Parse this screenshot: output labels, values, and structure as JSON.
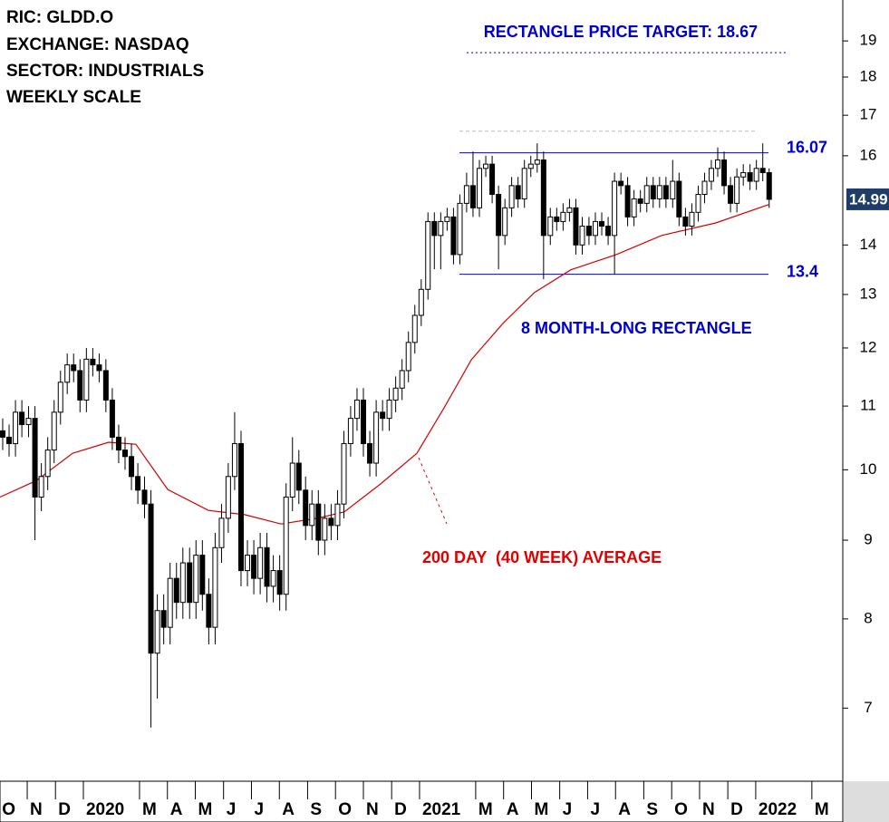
{
  "chart_data": {
    "type": "candlestick",
    "header": [
      "RIC: GLDD.O",
      "EXCHANGE: NASDAQ",
      "SECTOR: INDUSTRIALS",
      "WEEKLY SCALE"
    ],
    "log_scale": true,
    "ylim": [
      6.3,
      20.2
    ],
    "yticks": [
      7,
      8,
      9,
      10,
      11,
      12,
      13,
      14,
      16,
      17,
      18,
      19
    ],
    "xlim": [
      2019.752,
      2022.259
    ],
    "xticks": [
      {
        "value": 2019.75,
        "label": "O"
      },
      {
        "value": 2019.833,
        "label": "N"
      },
      {
        "value": 2019.917,
        "label": "D"
      },
      2020,
      {
        "value": 2020.167,
        "label": "M"
      },
      {
        "value": 2020.25,
        "label": "A"
      },
      {
        "value": 2020.333,
        "label": "M"
      },
      {
        "value": 2020.417,
        "label": "J"
      },
      {
        "value": 2020.5,
        "label": "J"
      },
      {
        "value": 2020.583,
        "label": "A"
      },
      {
        "value": 2020.667,
        "label": "S"
      },
      {
        "value": 2020.75,
        "label": "O"
      },
      {
        "value": 2020.833,
        "label": "N"
      },
      {
        "value": 2020.917,
        "label": "D"
      },
      2021,
      {
        "value": 2021.167,
        "label": "M"
      },
      {
        "value": 2021.25,
        "label": "A"
      },
      {
        "value": 2021.333,
        "label": "M"
      },
      {
        "value": 2021.417,
        "label": "J"
      },
      {
        "value": 2021.5,
        "label": "J"
      },
      {
        "value": 2021.583,
        "label": "A"
      },
      {
        "value": 2021.667,
        "label": "S"
      },
      {
        "value": 2021.75,
        "label": "O"
      },
      {
        "value": 2021.833,
        "label": "N"
      },
      {
        "value": 2021.917,
        "label": "D"
      },
      2022,
      {
        "value": 2022.167,
        "label": "M"
      }
    ],
    "color_up": "#ffffff",
    "color_down": "#000000",
    "x": [
      2019.76,
      2019.779,
      2019.798,
      2019.817,
      2019.837,
      2019.856,
      2019.875,
      2019.894,
      2019.913,
      2019.932,
      2019.952,
      2019.971,
      2019.99,
      2020.009,
      2020.028,
      2020.047,
      2020.067,
      2020.086,
      2020.105,
      2020.124,
      2020.143,
      2020.162,
      2020.182,
      2020.201,
      2020.22,
      2020.239,
      2020.258,
      2020.277,
      2020.296,
      2020.316,
      2020.335,
      2020.354,
      2020.373,
      2020.392,
      2020.411,
      2020.431,
      2020.45,
      2020.469,
      2020.488,
      2020.507,
      2020.526,
      2020.546,
      2020.565,
      2020.584,
      2020.603,
      2020.622,
      2020.641,
      2020.661,
      2020.68,
      2020.699,
      2020.718,
      2020.737,
      2020.756,
      2020.775,
      2020.795,
      2020.814,
      2020.833,
      2020.852,
      2020.871,
      2020.89,
      2020.91,
      2020.929,
      2020.948,
      2020.967,
      2020.986,
      2021.005,
      2021.025,
      2021.044,
      2021.063,
      2021.082,
      2021.101,
      2021.12,
      2021.14,
      2021.159,
      2021.178,
      2021.197,
      2021.216,
      2021.235,
      2021.254,
      2021.274,
      2021.293,
      2021.312,
      2021.331,
      2021.35,
      2021.369,
      2021.389,
      2021.408,
      2021.427,
      2021.446,
      2021.465,
      2021.484,
      2021.504,
      2021.523,
      2021.542,
      2021.561,
      2021.58,
      2021.599,
      2021.619,
      2021.638,
      2021.657,
      2021.676,
      2021.695,
      2021.714,
      2021.733,
      2021.753,
      2021.772,
      2021.791,
      2021.81,
      2021.829,
      2021.848,
      2021.868,
      2021.887,
      2021.906,
      2021.925,
      2021.944,
      2021.963,
      2021.983,
      2022.002,
      2022.021,
      2022.04
    ],
    "open": [
      10.6,
      10.5,
      10.4,
      10.9,
      10.7,
      10.8,
      9.6,
      9.9,
      10.3,
      10.9,
      11.4,
      11.7,
      11.6,
      11.1,
      11.8,
      11.7,
      11.6,
      11.1,
      10.5,
      10.3,
      10.2,
      9.9,
      9.7,
      9.5,
      7.6,
      8.1,
      7.9,
      8.5,
      8.2,
      8.7,
      8.2,
      8.8,
      8.3,
      7.9,
      8.9,
      9.3,
      9.9,
      10.4,
      8.6,
      8.8,
      8.5,
      8.9,
      8.4,
      8.6,
      8.3,
      9.6,
      10.1,
      9.7,
      9.2,
      9.5,
      9.0,
      9.3,
      9.2,
      9.5,
      10.4,
      10.8,
      11.1,
      10.4,
      10.1,
      10.9,
      10.8,
      11.1,
      11.3,
      11.6,
      12.1,
      12.6,
      13.1,
      14.5,
      14.2,
      14.5,
      14.6,
      13.8,
      14.9,
      15.3,
      14.8,
      15.7,
      15.8,
      15.1,
      14.2,
      14.8,
      15.3,
      15.0,
      15.7,
      15.8,
      15.9,
      14.2,
      14.6,
      14.5,
      14.7,
      14.8,
      14.0,
      14.4,
      14.2,
      14.5,
      14.4,
      14.2,
      15.4,
      15.3,
      14.6,
      15.0,
      14.9,
      15.3,
      15.0,
      15.3,
      15.0,
      15.4,
      14.6,
      14.4,
      14.7,
      15.1,
      15.4,
      15.7,
      15.9,
      15.3,
      14.9,
      15.5,
      15.6,
      15.4,
      15.7,
      15.6
    ],
    "high": [
      10.8,
      10.7,
      11.1,
      11.1,
      11.0,
      11.0,
      10.1,
      10.5,
      11.1,
      11.6,
      11.9,
      11.9,
      11.8,
      12.0,
      12.0,
      11.9,
      11.8,
      11.3,
      10.7,
      10.5,
      10.4,
      10.1,
      9.9,
      9.7,
      8.3,
      8.3,
      8.7,
      8.7,
      8.9,
      8.9,
      9.0,
      9.0,
      8.5,
      9.1,
      9.5,
      10.1,
      10.9,
      10.6,
      9.0,
      9.0,
      9.1,
      9.1,
      8.8,
      8.8,
      9.8,
      10.5,
      10.3,
      9.9,
      9.7,
      9.7,
      9.5,
      9.5,
      9.7,
      10.6,
      11.0,
      11.3,
      11.3,
      10.6,
      11.1,
      11.1,
      11.3,
      11.5,
      11.8,
      12.3,
      12.8,
      13.3,
      14.7,
      14.7,
      14.7,
      14.8,
      14.8,
      15.1,
      15.6,
      16.1,
      15.9,
      16.0,
      16.0,
      15.3,
      15.0,
      15.5,
      15.5,
      15.9,
      16.0,
      16.3,
      16.1,
      14.8,
      14.8,
      14.9,
      15.0,
      15.0,
      14.6,
      14.6,
      14.7,
      14.7,
      14.6,
      15.6,
      15.6,
      15.5,
      15.2,
      15.2,
      15.5,
      15.5,
      15.5,
      15.5,
      15.9,
      15.6,
      14.8,
      14.9,
      15.3,
      15.6,
      15.9,
      16.2,
      16.1,
      15.5,
      15.7,
      15.8,
      15.8,
      15.9,
      16.3,
      15.7
    ],
    "low": [
      10.3,
      10.2,
      10.2,
      10.5,
      10.5,
      9.0,
      9.4,
      9.7,
      10.1,
      10.7,
      11.2,
      11.4,
      10.9,
      10.9,
      11.5,
      11.4,
      10.9,
      10.3,
      10.1,
      10.0,
      9.7,
      9.5,
      9.3,
      6.8,
      7.1,
      7.7,
      7.7,
      8.0,
      8.0,
      8.0,
      8.0,
      8.1,
      7.7,
      7.7,
      8.7,
      9.1,
      9.7,
      8.4,
      8.4,
      8.3,
      8.3,
      8.2,
      8.2,
      8.1,
      8.1,
      9.4,
      9.5,
      9.0,
      9.0,
      8.8,
      8.8,
      9.0,
      9.0,
      9.3,
      10.2,
      10.6,
      10.2,
      9.9,
      9.9,
      10.6,
      10.6,
      10.9,
      11.1,
      11.4,
      11.9,
      12.4,
      12.9,
      13.5,
      13.5,
      14.3,
      13.6,
      13.6,
      14.7,
      14.6,
      14.6,
      15.5,
      14.9,
      13.5,
      14.0,
      14.6,
      14.8,
      14.8,
      15.5,
      15.6,
      13.3,
      14.0,
      14.3,
      14.3,
      14.5,
      13.8,
      13.8,
      14.0,
      14.0,
      14.2,
      14.0,
      13.4,
      15.1,
      14.4,
      14.4,
      14.7,
      14.7,
      14.8,
      14.8,
      14.8,
      14.8,
      14.4,
      14.2,
      14.2,
      14.5,
      14.9,
      15.2,
      15.5,
      15.1,
      14.7,
      14.7,
      15.3,
      15.2,
      15.2,
      15.4,
      14.8
    ],
    "close": [
      10.5,
      10.4,
      10.9,
      10.7,
      10.8,
      9.6,
      9.9,
      10.3,
      10.9,
      11.4,
      11.7,
      11.6,
      11.1,
      11.8,
      11.7,
      11.6,
      11.1,
      10.5,
      10.3,
      10.2,
      9.9,
      9.7,
      9.5,
      7.6,
      8.1,
      7.9,
      8.5,
      8.2,
      8.7,
      8.2,
      8.8,
      8.3,
      7.9,
      8.9,
      9.3,
      9.9,
      10.4,
      8.6,
      8.8,
      8.5,
      8.9,
      8.4,
      8.6,
      8.3,
      9.6,
      10.1,
      9.7,
      9.2,
      9.5,
      9.0,
      9.3,
      9.2,
      9.5,
      10.4,
      10.8,
      11.1,
      10.4,
      10.1,
      10.9,
      10.8,
      11.1,
      11.3,
      11.6,
      12.1,
      12.6,
      13.1,
      14.5,
      14.2,
      14.5,
      14.6,
      13.8,
      14.9,
      15.3,
      14.8,
      15.7,
      15.8,
      15.1,
      14.2,
      14.8,
      15.3,
      15.0,
      15.7,
      15.8,
      15.9,
      14.2,
      14.6,
      14.5,
      14.7,
      14.8,
      14.0,
      14.4,
      14.2,
      14.5,
      14.4,
      14.2,
      15.4,
      15.3,
      14.6,
      15.0,
      14.9,
      15.3,
      15.0,
      15.3,
      15.0,
      15.4,
      14.6,
      14.4,
      14.7,
      15.1,
      15.4,
      15.7,
      15.9,
      15.3,
      14.9,
      15.5,
      15.6,
      15.4,
      15.7,
      15.6,
      14.99
    ],
    "last_price": 14.99,
    "moving_average": {
      "label": "200 DAY  (40 WEEK) AVERAGE",
      "color": "#d40000",
      "x": [
        2019.752,
        2019.86,
        2019.968,
        2020.075,
        2020.156,
        2020.251,
        2020.372,
        2020.48,
        2020.588,
        2020.695,
        2020.776,
        2020.884,
        2020.992,
        2021.073,
        2021.154,
        2021.248,
        2021.342,
        2021.45,
        2021.585,
        2021.72,
        2021.881,
        2022.038
      ],
      "values": [
        9.6,
        9.84,
        10.25,
        10.42,
        10.39,
        9.71,
        9.41,
        9.35,
        9.22,
        9.3,
        9.39,
        9.79,
        10.25,
        10.97,
        11.79,
        12.45,
        13.04,
        13.49,
        13.8,
        14.2,
        14.47,
        14.87
      ]
    },
    "rectangle": {
      "label": "8 MONTH-LONG RECTANGLE",
      "upper": 16.07,
      "lower": 13.4,
      "top_dashed": 16.6,
      "color": "#0000cc"
    },
    "target": {
      "label": "RECTANGLE PRICE TARGET: 18.67",
      "value": 18.67
    }
  }
}
